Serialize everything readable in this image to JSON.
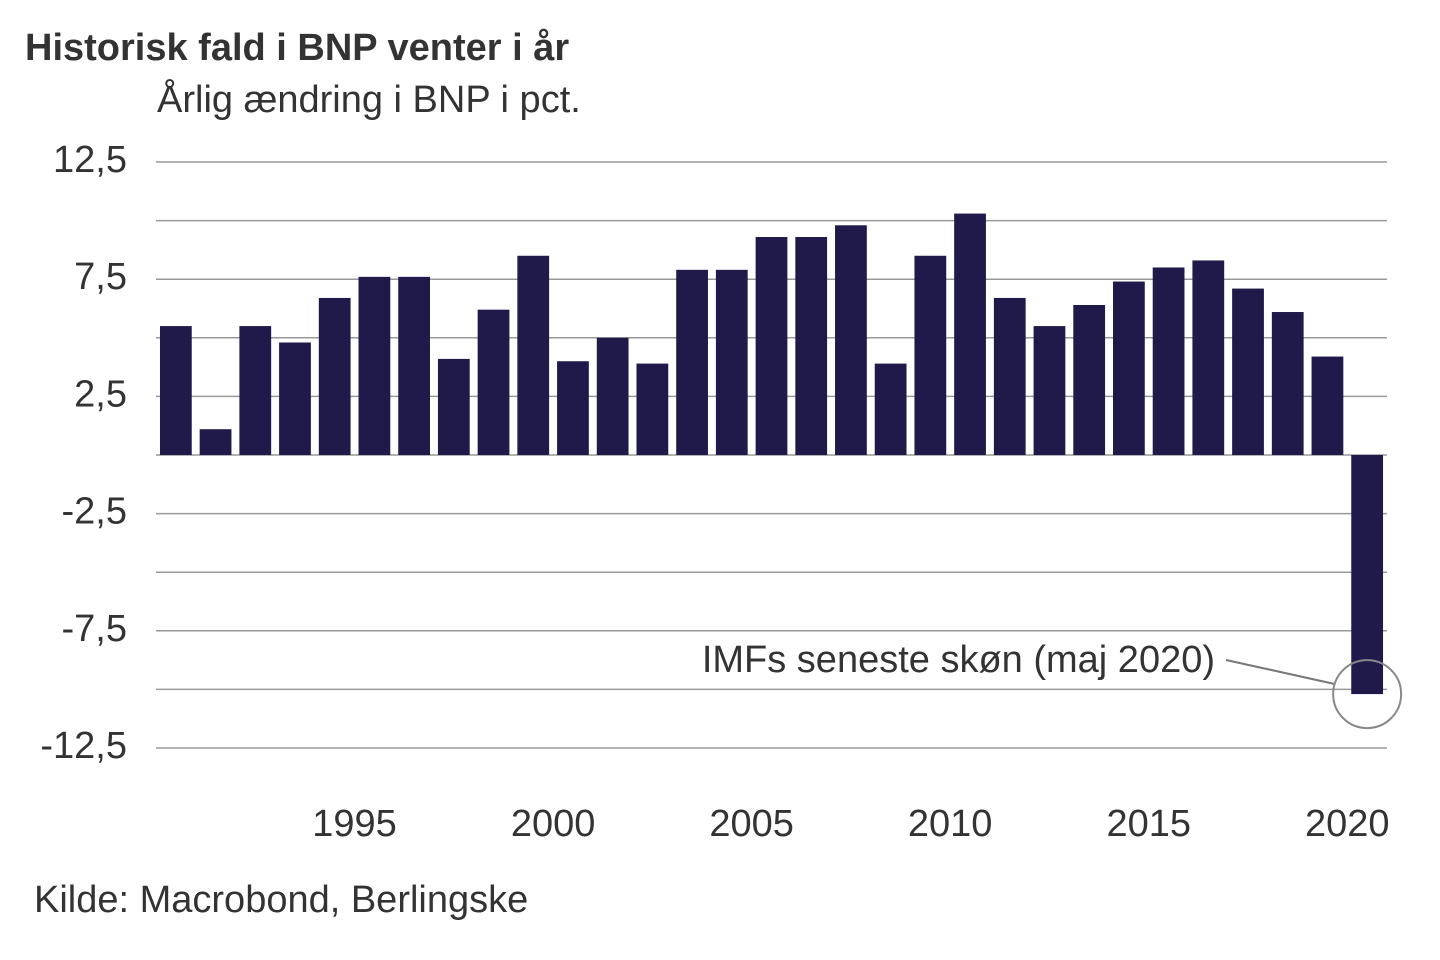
{
  "chart_data": {
    "type": "bar",
    "title": "Historisk fald i BNP venter i år",
    "subtitle": "Årlig ændring i BNP i pct.",
    "source": "Kilde: Macrobond, Berlingske",
    "annotation": "IMFs seneste skøn (maj 2020)",
    "x": [
      1990,
      1991,
      1992,
      1993,
      1994,
      1995,
      1996,
      1997,
      1998,
      1999,
      2000,
      2001,
      2002,
      2003,
      2004,
      2005,
      2006,
      2007,
      2008,
      2009,
      2010,
      2011,
      2012,
      2013,
      2014,
      2015,
      2016,
      2017,
      2018,
      2019,
      2020
    ],
    "values": [
      5.5,
      1.1,
      5.5,
      4.8,
      6.7,
      7.6,
      7.6,
      4.1,
      6.2,
      8.5,
      4.0,
      5.0,
      3.9,
      7.9,
      7.9,
      9.3,
      9.3,
      9.8,
      3.9,
      8.5,
      10.3,
      6.7,
      5.5,
      6.4,
      7.4,
      8.0,
      8.3,
      7.1,
      6.1,
      4.2,
      -10.2
    ],
    "color": "#1f1a4a",
    "xlim": [
      1990,
      2021
    ],
    "xticks": [
      1995,
      2000,
      2005,
      2010,
      2015,
      2020
    ],
    "ylim": [
      -12.5,
      12.5
    ],
    "yticks": [
      {
        "value": 12.5,
        "label": "12,5"
      },
      {
        "value": 7.5,
        "label": "7,5"
      },
      {
        "value": 2.5,
        "label": "2,5"
      },
      {
        "value": -2.5,
        "label": "-2,5"
      },
      {
        "value": -7.5,
        "label": "-7,5"
      },
      {
        "value": -12.5,
        "label": "-12,5"
      }
    ],
    "yminor": [
      10,
      5,
      0,
      -5,
      -10
    ],
    "grid": true
  }
}
